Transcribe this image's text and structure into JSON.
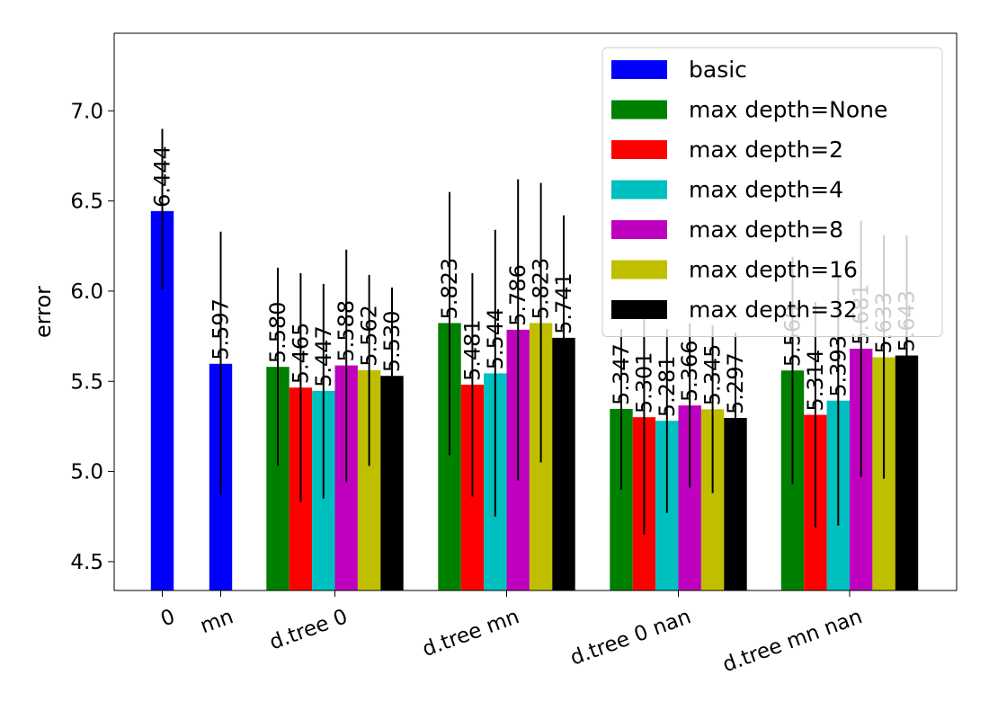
{
  "chart_data": {
    "type": "bar",
    "ylabel": "error",
    "ylim": [
      4.34,
      7.43
    ],
    "yticks": [
      4.5,
      5.0,
      5.5,
      6.0,
      6.5,
      7.0
    ],
    "ytick_labels": [
      "4.5",
      "5.0",
      "5.5",
      "6.0",
      "6.5",
      "7.0"
    ],
    "groups": [
      {
        "label": "0",
        "bars": [
          {
            "series": "basic",
            "value": 6.444,
            "label": "6.444",
            "err_low": 6.01,
            "err_high": 6.9
          }
        ]
      },
      {
        "label": "mn",
        "bars": [
          {
            "series": "basic",
            "value": 5.597,
            "label": "5.597",
            "err_low": 4.87,
            "err_high": 6.33
          }
        ]
      },
      {
        "label": "d.tree 0",
        "bars": [
          {
            "series": "max depth=None",
            "value": 5.58,
            "label": "5.580",
            "err_low": 5.03,
            "err_high": 6.13
          },
          {
            "series": "max depth=2",
            "value": 5.465,
            "label": "5.465",
            "err_low": 4.83,
            "err_high": 6.1
          },
          {
            "series": "max depth=4",
            "value": 5.447,
            "label": "5.447",
            "err_low": 4.85,
            "err_high": 6.04
          },
          {
            "series": "max depth=8",
            "value": 5.588,
            "label": "5.588",
            "err_low": 4.94,
            "err_high": 6.23
          },
          {
            "series": "max depth=16",
            "value": 5.562,
            "label": "5.562",
            "err_low": 5.03,
            "err_high": 6.09
          },
          {
            "series": "max depth=32",
            "value": 5.53,
            "label": "5.530",
            "err_low": 5.04,
            "err_high": 6.02
          }
        ]
      },
      {
        "label": "d.tree mn",
        "bars": [
          {
            "series": "max depth=None",
            "value": 5.823,
            "label": "5.823",
            "err_low": 5.09,
            "err_high": 6.55
          },
          {
            "series": "max depth=2",
            "value": 5.481,
            "label": "5.481",
            "err_low": 4.86,
            "err_high": 6.1
          },
          {
            "series": "max depth=4",
            "value": 5.544,
            "label": "5.544",
            "err_low": 4.75,
            "err_high": 6.34
          },
          {
            "series": "max depth=8",
            "value": 5.786,
            "label": "5.786",
            "err_low": 4.95,
            "err_high": 6.62
          },
          {
            "series": "max depth=16",
            "value": 5.823,
            "label": "5.823",
            "err_low": 5.05,
            "err_high": 6.6
          },
          {
            "series": "max depth=32",
            "value": 5.741,
            "label": "5.741",
            "err_low": 5.06,
            "err_high": 6.42
          }
        ]
      },
      {
        "label": "d.tree 0 nan",
        "bars": [
          {
            "series": "max depth=None",
            "value": 5.347,
            "label": "5.347",
            "err_low": 4.9,
            "err_high": 5.79
          },
          {
            "series": "max depth=2",
            "value": 5.301,
            "label": "5.301",
            "err_low": 4.65,
            "err_high": 5.95
          },
          {
            "series": "max depth=4",
            "value": 5.281,
            "label": "5.281",
            "err_low": 4.77,
            "err_high": 5.79
          },
          {
            "series": "max depth=8",
            "value": 5.366,
            "label": "5.366",
            "err_low": 4.91,
            "err_high": 5.82
          },
          {
            "series": "max depth=16",
            "value": 5.345,
            "label": "5.345",
            "err_low": 4.88,
            "err_high": 5.81
          },
          {
            "series": "max depth=32",
            "value": 5.297,
            "label": "5.297",
            "err_low": 4.82,
            "err_high": 5.77
          }
        ]
      },
      {
        "label": "d.tree mn nan",
        "bars": [
          {
            "series": "max depth=None",
            "value": 5.56,
            "label": "5.560",
            "err_low": 4.93,
            "err_high": 6.19
          },
          {
            "series": "max depth=2",
            "value": 5.314,
            "label": "5.314",
            "err_low": 4.69,
            "err_high": 5.94
          },
          {
            "series": "max depth=4",
            "value": 5.393,
            "label": "5.393",
            "err_low": 4.7,
            "err_high": 6.09
          },
          {
            "series": "max depth=8",
            "value": 5.681,
            "label": "5.681",
            "err_low": 4.97,
            "err_high": 6.39
          },
          {
            "series": "max depth=16",
            "value": 5.633,
            "label": "5.633",
            "err_low": 4.96,
            "err_high": 6.31
          },
          {
            "series": "max depth=32",
            "value": 5.643,
            "label": "5.643",
            "err_low": 4.98,
            "err_high": 6.31
          }
        ]
      }
    ],
    "legend": {
      "placement": "top-right",
      "entries": [
        {
          "label": "basic",
          "color": "#0000ff"
        },
        {
          "label": "max depth=None",
          "color": "#008000"
        },
        {
          "label": "max depth=2",
          "color": "#ff0000"
        },
        {
          "label": "max depth=4",
          "color": "#00bfbf"
        },
        {
          "label": "max depth=8",
          "color": "#bf00bf"
        },
        {
          "label": "max depth=16",
          "color": "#bfbf00"
        },
        {
          "label": "max depth=32",
          "color": "#000000"
        }
      ]
    }
  }
}
